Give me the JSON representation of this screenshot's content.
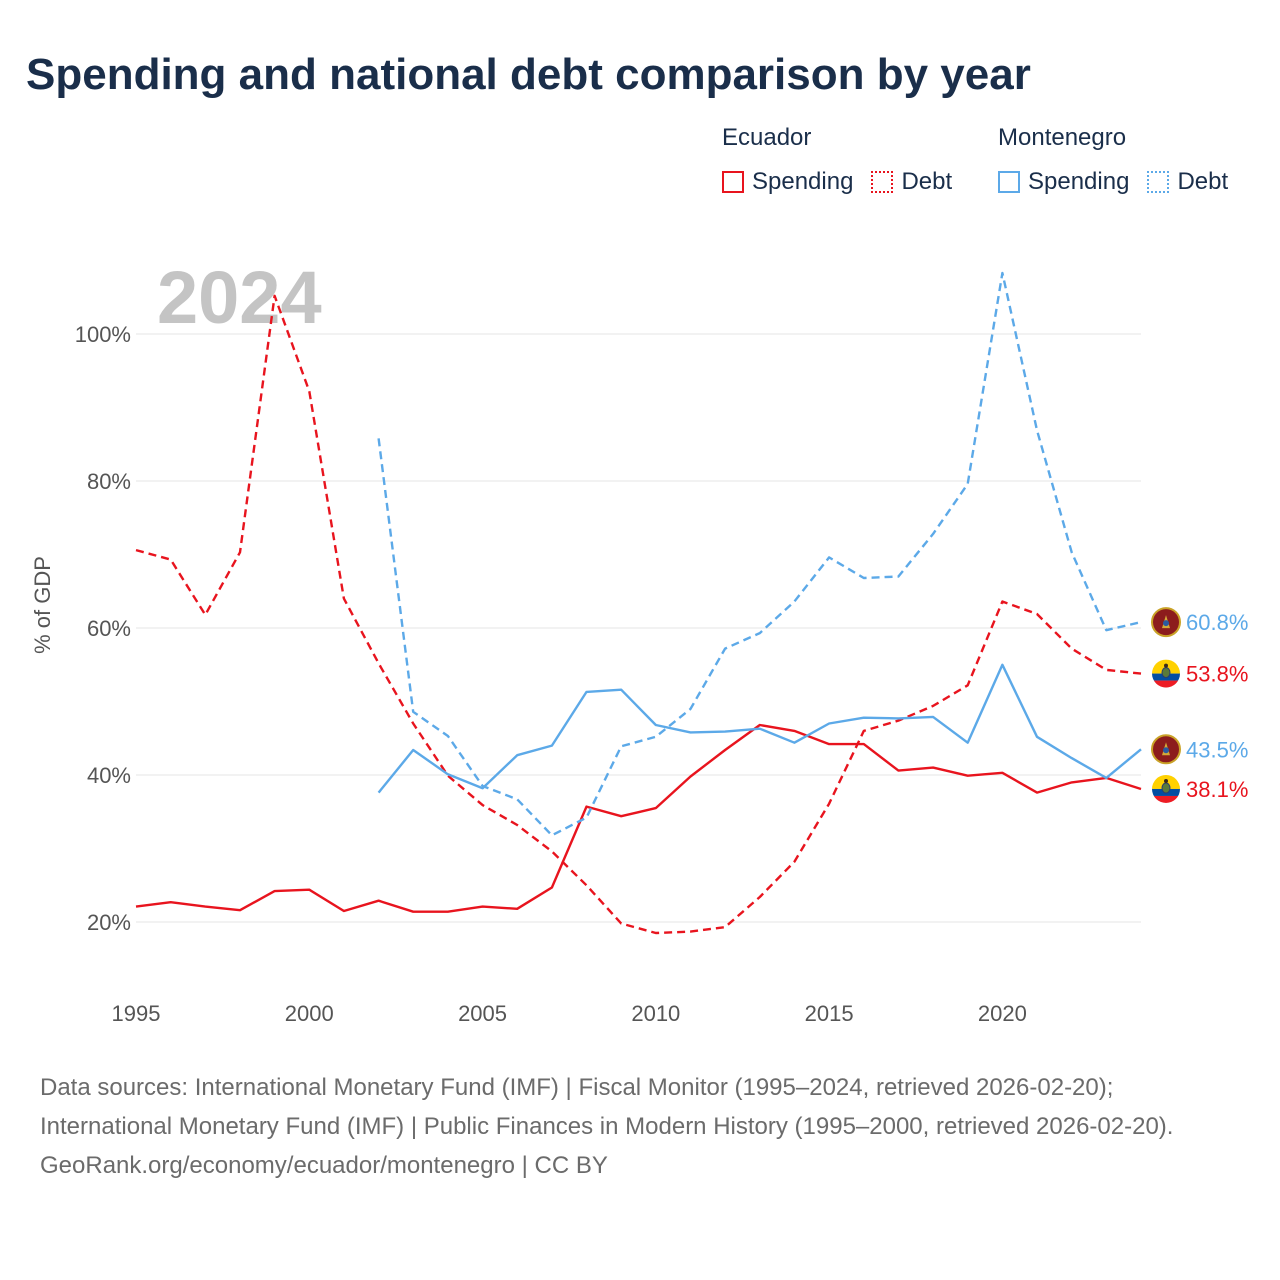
{
  "title": "Spending and national debt comparison by year",
  "legend": {
    "groups": [
      {
        "country": "Ecuador",
        "color": "#e8141e",
        "items": [
          "Spending",
          "Debt"
        ]
      },
      {
        "country": "Montenegro",
        "color": "#5ca9e8",
        "items": [
          "Spending",
          "Debt"
        ]
      }
    ]
  },
  "sources": {
    "line1": "Data sources: International Monetary Fund (IMF) | Fiscal Monitor (1995–2024, retrieved 2026-02-20); International Monetary Fund (IMF) | Public Finances in Modern History (1995–2000, retrieved 2026-02-20).",
    "line2": "GeoRank.org/economy/ecuador/montenegro | CC BY"
  },
  "chart_data": {
    "type": "line",
    "title": "Spending and national debt comparison by year",
    "year_label": "2024",
    "ylabel": "% of GDP",
    "xlabel": "",
    "xlim": [
      1995,
      2024
    ],
    "ylim": [
      10,
      112
    ],
    "x_ticks": [
      1995,
      2000,
      2005,
      2010,
      2015,
      2020
    ],
    "y_ticks": [
      20,
      40,
      60,
      80,
      100
    ],
    "y_tick_labels": [
      "20%",
      "40%",
      "60%",
      "80%",
      "100%"
    ],
    "grid": true,
    "series": [
      {
        "name": "Ecuador Spending",
        "country": "Ecuador",
        "metric": "Spending",
        "color": "#e8141e",
        "dashed": false,
        "end_label": "38.1%",
        "flag": "ecuador",
        "x": [
          1995,
          1996,
          1997,
          1998,
          1999,
          2000,
          2001,
          2002,
          2003,
          2004,
          2005,
          2006,
          2007,
          2008,
          2009,
          2010,
          2011,
          2012,
          2013,
          2014,
          2015,
          2016,
          2017,
          2018,
          2019,
          2020,
          2021,
          2022,
          2023,
          2024
        ],
        "values": [
          22.1,
          22.7,
          22.1,
          21.6,
          24.2,
          24.4,
          21.5,
          22.9,
          21.4,
          21.4,
          22.1,
          21.8,
          24.7,
          35.7,
          34.4,
          35.5,
          39.8,
          43.4,
          46.8,
          46.0,
          44.2,
          44.2,
          40.6,
          41.0,
          39.9,
          40.3,
          37.6,
          39.0,
          39.6,
          38.1
        ]
      },
      {
        "name": "Ecuador Debt",
        "country": "Ecuador",
        "metric": "Debt",
        "color": "#e8141e",
        "dashed": true,
        "end_label": "53.8%",
        "flag": "ecuador",
        "x": [
          1995,
          1996,
          1997,
          1998,
          1999,
          2000,
          2001,
          2002,
          2003,
          2004,
          2005,
          2006,
          2007,
          2008,
          2009,
          2010,
          2011,
          2012,
          2013,
          2014,
          2015,
          2016,
          2017,
          2018,
          2019,
          2020,
          2021,
          2022,
          2023,
          2024
        ],
        "values": [
          70.6,
          69.3,
          61.8,
          70.3,
          105.2,
          92.2,
          64.0,
          55.2,
          47.0,
          39.9,
          35.9,
          33.2,
          29.6,
          25.0,
          19.8,
          18.5,
          18.7,
          19.3,
          23.4,
          28.2,
          36.1,
          46.0,
          47.4,
          49.4,
          52.2,
          63.6,
          61.9,
          57.2,
          54.3,
          53.8
        ]
      },
      {
        "name": "Montenegro Spending",
        "country": "Montenegro",
        "metric": "Spending",
        "color": "#5ca9e8",
        "dashed": false,
        "end_label": "43.5%",
        "flag": "montenegro",
        "x": [
          2002,
          2003,
          2004,
          2005,
          2006,
          2007,
          2008,
          2009,
          2010,
          2011,
          2012,
          2013,
          2014,
          2015,
          2016,
          2017,
          2018,
          2019,
          2020,
          2021,
          2022,
          2023,
          2024
        ],
        "values": [
          37.6,
          43.4,
          40.1,
          38.2,
          42.7,
          44.0,
          51.3,
          51.6,
          46.8,
          45.8,
          45.9,
          46.3,
          44.4,
          47.0,
          47.8,
          47.7,
          47.9,
          44.4,
          55.0,
          45.2,
          42.3,
          39.6,
          43.5
        ]
      },
      {
        "name": "Montenegro Debt",
        "country": "Montenegro",
        "metric": "Debt",
        "color": "#5ca9e8",
        "dashed": true,
        "end_label": "60.8%",
        "flag": "montenegro",
        "x": [
          2002,
          2003,
          2004,
          2005,
          2006,
          2007,
          2008,
          2009,
          2010,
          2011,
          2012,
          2013,
          2014,
          2015,
          2016,
          2017,
          2018,
          2019,
          2020,
          2021,
          2022,
          2023,
          2024
        ],
        "values": [
          85.8,
          48.6,
          45.3,
          38.5,
          36.7,
          31.8,
          34.2,
          43.9,
          45.2,
          49.0,
          57.2,
          59.3,
          63.6,
          69.6,
          66.8,
          67.0,
          72.8,
          79.6,
          108.3,
          86.9,
          70.3,
          59.7,
          60.8
        ]
      }
    ]
  }
}
